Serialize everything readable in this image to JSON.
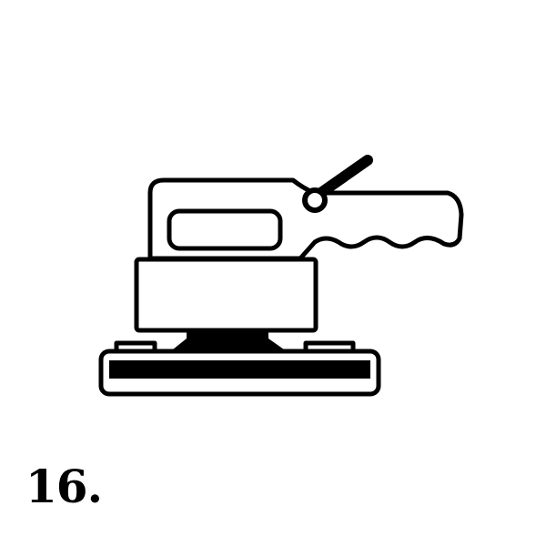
{
  "figure": {
    "icon": "orbital-sander-icon",
    "number_label": "16."
  },
  "colors": {
    "ink": "#000000",
    "paper": "#ffffff"
  }
}
